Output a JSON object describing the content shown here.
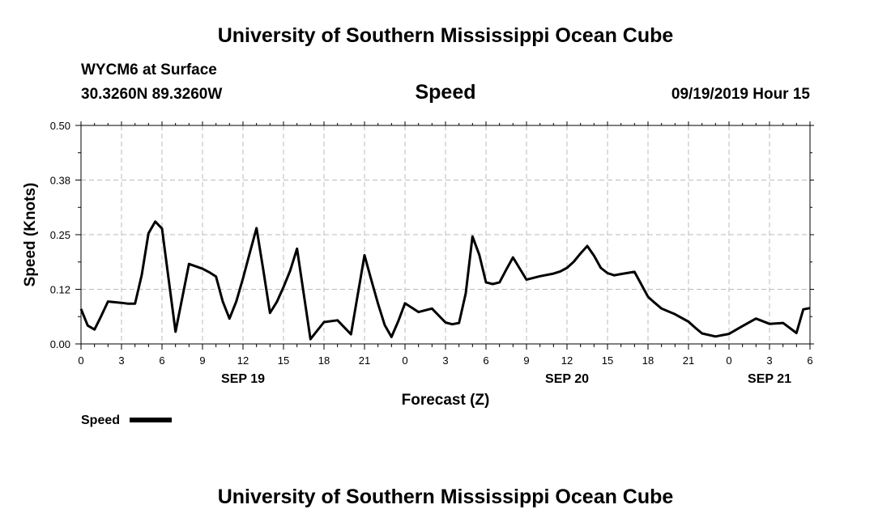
{
  "header": {
    "top_title": "University of Southern Mississippi Ocean Cube",
    "station": "WYCM6 at Surface",
    "location": "30.3260N 89.3260W",
    "variable": "Speed",
    "issued": "09/19/2019 Hour 15",
    "bottom_title": "University of Southern Mississippi Ocean Cube"
  },
  "legend": {
    "label": "Speed"
  },
  "colors": {
    "line": "#000000",
    "grid": "#bbbbbb"
  },
  "chart_data": {
    "type": "line",
    "title": "Speed",
    "xlabel": "Forecast (Z)",
    "ylabel": "Speed (Knots)",
    "xlim": [
      0,
      54
    ],
    "ylim": [
      0,
      0.5
    ],
    "x_unit": "hours since 00Z SEP 19",
    "x_ticks": [
      {
        "x": 0,
        "label": "0"
      },
      {
        "x": 3,
        "label": "3"
      },
      {
        "x": 6,
        "label": "6"
      },
      {
        "x": 9,
        "label": "9"
      },
      {
        "x": 12,
        "label": "12"
      },
      {
        "x": 15,
        "label": "15"
      },
      {
        "x": 18,
        "label": "18"
      },
      {
        "x": 21,
        "label": "21"
      },
      {
        "x": 24,
        "label": "0"
      },
      {
        "x": 27,
        "label": "3"
      },
      {
        "x": 30,
        "label": "6"
      },
      {
        "x": 33,
        "label": "9"
      },
      {
        "x": 36,
        "label": "12"
      },
      {
        "x": 39,
        "label": "15"
      },
      {
        "x": 42,
        "label": "18"
      },
      {
        "x": 45,
        "label": "21"
      },
      {
        "x": 48,
        "label": "0"
      },
      {
        "x": 51,
        "label": "3"
      },
      {
        "x": 54,
        "label": "6"
      }
    ],
    "date_labels": [
      {
        "x": 12,
        "label": "SEP 19"
      },
      {
        "x": 36,
        "label": "SEP 20"
      },
      {
        "x": 51,
        "label": "SEP 21"
      }
    ],
    "y_ticks": [
      {
        "y": 0.0,
        "label": "0.00"
      },
      {
        "y": 0.125,
        "label": "0.12"
      },
      {
        "y": 0.25,
        "label": "0.25"
      },
      {
        "y": 0.375,
        "label": "0.38"
      },
      {
        "y": 0.5,
        "label": "0.50"
      }
    ],
    "series": [
      {
        "name": "Speed",
        "x": [
          0,
          0.5,
          1,
          1.5,
          2,
          3,
          3.5,
          4,
          4.5,
          5,
          5.5,
          6,
          7,
          8,
          9,
          9.5,
          10,
          10.5,
          11,
          11.5,
          12,
          12.5,
          13,
          13.5,
          14,
          14.5,
          15,
          15.5,
          16,
          17,
          18,
          19,
          20,
          21,
          21.5,
          22,
          22.5,
          23,
          23.5,
          24,
          25,
          26,
          27,
          27.5,
          28,
          28.5,
          29,
          29.5,
          30,
          30.5,
          31,
          31.5,
          32,
          33,
          34,
          35,
          35.5,
          36,
          36.5,
          37,
          37.5,
          38,
          38.5,
          39,
          39.5,
          40,
          41,
          42,
          42.5,
          43,
          44,
          45,
          45.5,
          46,
          47,
          48,
          49,
          50,
          51,
          52,
          53,
          53.5,
          54
        ],
        "values": [
          0.08,
          0.042,
          0.033,
          0.064,
          0.097,
          0.094,
          0.092,
          0.092,
          0.158,
          0.253,
          0.28,
          0.264,
          0.028,
          0.183,
          0.172,
          0.164,
          0.154,
          0.097,
          0.058,
          0.097,
          0.15,
          0.208,
          0.265,
          0.17,
          0.071,
          0.096,
          0.13,
          0.168,
          0.218,
          0.011,
          0.05,
          0.054,
          0.022,
          0.203,
          0.147,
          0.092,
          0.043,
          0.016,
          0.052,
          0.093,
          0.073,
          0.081,
          0.049,
          0.045,
          0.048,
          0.116,
          0.246,
          0.204,
          0.141,
          0.137,
          0.141,
          0.17,
          0.198,
          0.147,
          0.155,
          0.161,
          0.166,
          0.174,
          0.188,
          0.207,
          0.224,
          0.202,
          0.174,
          0.162,
          0.157,
          0.16,
          0.165,
          0.108,
          0.094,
          0.081,
          0.068,
          0.051,
          0.037,
          0.024,
          0.017,
          0.023,
          0.041,
          0.058,
          0.046,
          0.048,
          0.025,
          0.079,
          0.082
        ]
      }
    ]
  }
}
